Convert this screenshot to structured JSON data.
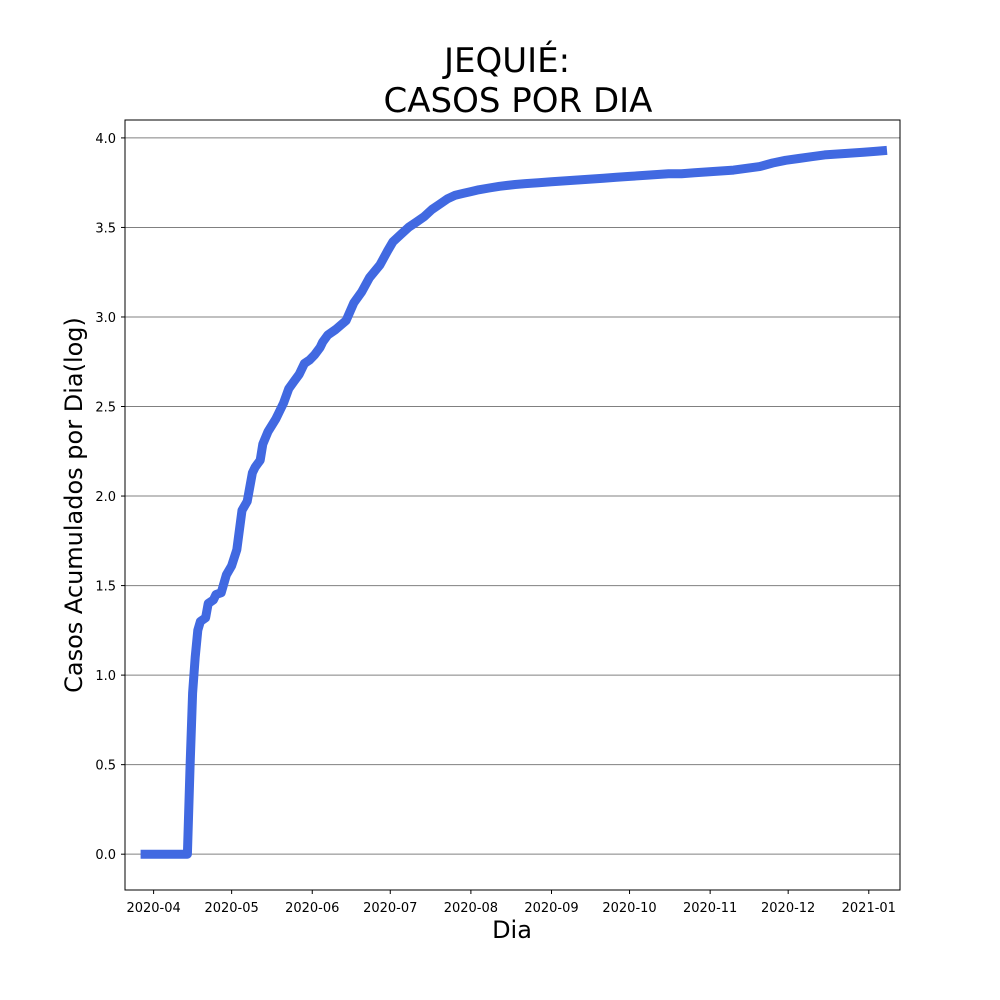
{
  "chart_data": {
    "type": "line",
    "title_lines": [
      "JEQUIÉ:",
      "CASOS POR DIA"
    ],
    "xlabel": "Dia",
    "ylabel": "Casos Acumulados por Dia(log)",
    "y_scale": "log10 of cumulative cases",
    "xlim": [
      "2020-03-21",
      "2021-01-13"
    ],
    "ylim": [
      -0.2,
      4.1
    ],
    "x_ticks": [
      "2020-04",
      "2020-05",
      "2020-06",
      "2020-07",
      "2020-08",
      "2020-09",
      "2020-10",
      "2020-11",
      "2020-12",
      "2021-01"
    ],
    "y_ticks": [
      "0.0",
      "0.5",
      "1.0",
      "1.5",
      "2.0",
      "2.5",
      "3.0",
      "3.5",
      "4.0"
    ],
    "grid": "horizontal",
    "line_color": "#4169e1",
    "series": [
      {
        "x": [
          "2020-03-27",
          "2020-04-14",
          "2020-04-15",
          "2020-04-16",
          "2020-04-17",
          "2020-04-18",
          "2020-04-19",
          "2020-04-21",
          "2020-04-22",
          "2020-04-24",
          "2020-04-25",
          "2020-04-27",
          "2020-04-29",
          "2020-05-01",
          "2020-05-03",
          "2020-05-05",
          "2020-05-07",
          "2020-05-08",
          "2020-05-09",
          "2020-05-10",
          "2020-05-11",
          "2020-05-12",
          "2020-05-13",
          "2020-05-15",
          "2020-05-18",
          "2020-05-19",
          "2020-05-21",
          "2020-05-23",
          "2020-05-25",
          "2020-05-27",
          "2020-05-29",
          "2020-05-31",
          "2020-06-02",
          "2020-06-04",
          "2020-06-05",
          "2020-06-07",
          "2020-06-10",
          "2020-06-14",
          "2020-06-17",
          "2020-06-20",
          "2020-06-23",
          "2020-06-27",
          "2020-06-30",
          "2020-07-02",
          "2020-07-05",
          "2020-07-08",
          "2020-07-11",
          "2020-07-14",
          "2020-07-17",
          "2020-07-20",
          "2020-07-23",
          "2020-07-26",
          "2020-07-29",
          "2020-08-01",
          "2020-08-04",
          "2020-08-08",
          "2020-08-12",
          "2020-08-15",
          "2020-08-18",
          "2020-08-22",
          "2020-08-27",
          "2020-09-01",
          "2020-09-06",
          "2020-09-11",
          "2020-09-16",
          "2020-09-21",
          "2020-09-26",
          "2020-10-01",
          "2020-10-06",
          "2020-10-11",
          "2020-10-16",
          "2020-10-21",
          "2020-10-26",
          "2020-10-31",
          "2020-11-05",
          "2020-11-10",
          "2020-11-15",
          "2020-11-20",
          "2020-11-25",
          "2020-11-30",
          "2020-12-05",
          "2020-12-10",
          "2020-12-15",
          "2020-12-20",
          "2020-12-25",
          "2020-12-30",
          "2021-01-04",
          "2021-01-08"
        ],
        "y": [
          0.0,
          0.0,
          0.48,
          0.9,
          1.1,
          1.25,
          1.3,
          1.32,
          1.4,
          1.42,
          1.45,
          1.46,
          1.56,
          1.61,
          1.7,
          1.92,
          1.97,
          2.05,
          2.13,
          2.16,
          2.18,
          2.2,
          2.29,
          2.36,
          2.43,
          2.46,
          2.52,
          2.6,
          2.64,
          2.68,
          2.74,
          2.76,
          2.79,
          2.83,
          2.86,
          2.9,
          2.93,
          2.98,
          3.08,
          3.14,
          3.22,
          3.29,
          3.37,
          3.42,
          3.46,
          3.5,
          3.53,
          3.56,
          3.6,
          3.63,
          3.66,
          3.68,
          3.69,
          3.7,
          3.71,
          3.72,
          3.73,
          3.735,
          3.74,
          3.745,
          3.75,
          3.755,
          3.76,
          3.765,
          3.77,
          3.775,
          3.78,
          3.785,
          3.79,
          3.795,
          3.8,
          3.8,
          3.805,
          3.81,
          3.815,
          3.82,
          3.83,
          3.84,
          3.86,
          3.875,
          3.885,
          3.895,
          3.905,
          3.91,
          3.915,
          3.92,
          3.925,
          3.93
        ]
      }
    ]
  }
}
